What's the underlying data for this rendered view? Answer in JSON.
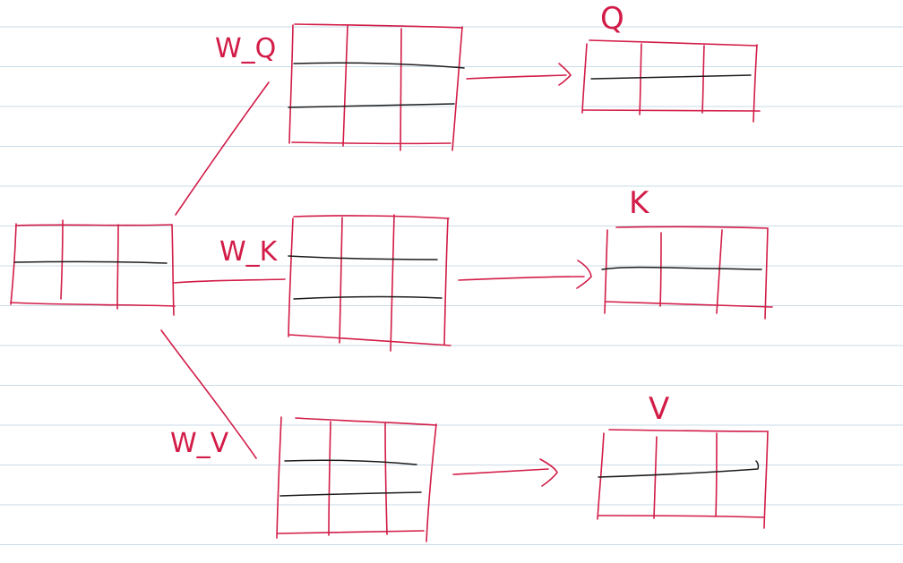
{
  "colors": {
    "ink": "#d21c47",
    "pen": "#1c1c1c",
    "rule": "#c9dbe7",
    "paper": "#ffffff"
  },
  "labels": {
    "w_q": "W_Q",
    "w_k": "W_K",
    "w_v": "W_V",
    "q": "Q",
    "k": "K",
    "v": "V"
  }
}
